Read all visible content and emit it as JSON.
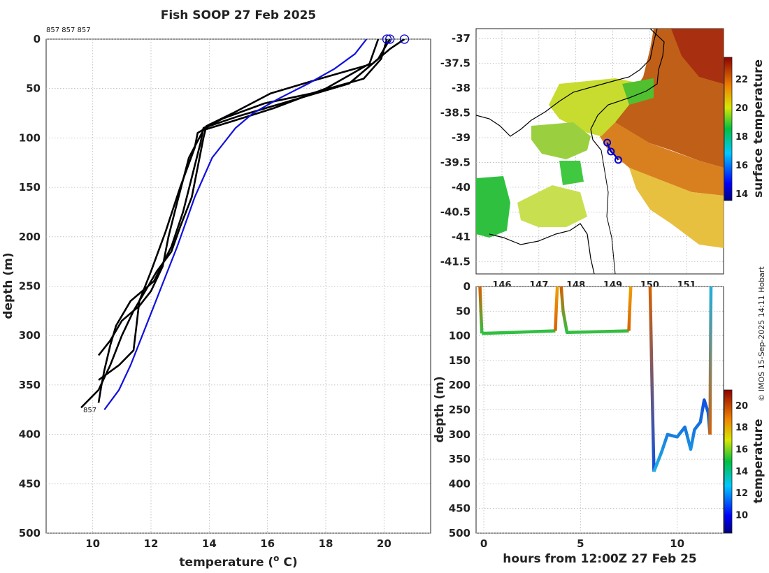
{
  "colors": {
    "profile": "#000000",
    "climatology": "#1010e0",
    "marker": "#0000cc",
    "land": "#ffffff",
    "coast": "#000000"
  },
  "footer": {
    "credit": "© IMOS 15-Sep-2025 14:11 Hobart"
  },
  "chart_data": [
    {
      "id": "profile",
      "type": "line",
      "title": "Fish SOOP 27 Feb 2025",
      "xlabel": "temperature (",
      "xlabel_sup": "o",
      "xlabel_end": " C)",
      "ylabel": "depth (m)",
      "xlim": [
        8.4,
        21.6
      ],
      "ylim": [
        500,
        0
      ],
      "xticks": [
        "10",
        "12",
        "14",
        "16",
        "18",
        "20"
      ],
      "yticks": [
        "0",
        "50",
        "100",
        "150",
        "200",
        "250",
        "300",
        "350",
        "400",
        "450",
        "500"
      ],
      "grid": true,
      "top_label": "857 857 857",
      "end_label": "857",
      "climatology": {
        "name": "climatology",
        "x": [
          19.4,
          19.0,
          18.3,
          17.4,
          16.4,
          15.5,
          14.9,
          14.5,
          14.1,
          13.8,
          13.5,
          13.2,
          12.9,
          12.5,
          12.1,
          11.7,
          11.3,
          10.9,
          10.4
        ],
        "y": [
          0,
          15,
          30,
          45,
          60,
          75,
          90,
          105,
          120,
          140,
          160,
          185,
          210,
          240,
          270,
          300,
          330,
          355,
          375
        ]
      },
      "series": [
        {
          "name": "drop-1",
          "x": [
            20.7,
            20.2,
            19.6,
            17.8,
            16.1,
            14.8,
            13.9,
            13.8,
            13.6,
            13.4,
            13.0,
            12.7,
            12.2,
            11.8,
            11.4,
            11.0,
            10.6,
            10.2,
            9.6
          ],
          "y": [
            0,
            10,
            25,
            40,
            55,
            75,
            88,
            100,
            130,
            160,
            190,
            215,
            235,
            255,
            275,
            300,
            330,
            355,
            373
          ]
        },
        {
          "name": "drop-2",
          "x": [
            20.1,
            19.9,
            19.3,
            17.5,
            15.9,
            14.5,
            13.8,
            13.7,
            13.4,
            13.1,
            12.7,
            12.1,
            11.3,
            10.8,
            10.6,
            10.4,
            10.3,
            10.2
          ],
          "y": [
            0,
            20,
            40,
            55,
            65,
            80,
            90,
            105,
            140,
            175,
            210,
            245,
            265,
            290,
            310,
            335,
            350,
            368
          ]
        },
        {
          "name": "drop-3",
          "x": [
            20.2,
            19.8,
            18.8,
            16.5,
            15.0,
            14.0,
            13.6,
            13.5,
            13.0,
            12.5,
            12.0,
            11.6,
            11.5,
            11.4,
            10.9,
            10.2
          ],
          "y": [
            0,
            20,
            45,
            65,
            78,
            88,
            95,
            110,
            150,
            195,
            235,
            265,
            290,
            315,
            330,
            345
          ]
        },
        {
          "name": "drop-4",
          "x": [
            19.8,
            19.5,
            18.0,
            16.2,
            14.8,
            13.8,
            13.3,
            12.9,
            12.6,
            12.4,
            12.0,
            11.6,
            11.0,
            10.6,
            10.2
          ],
          "y": [
            0,
            25,
            50,
            70,
            83,
            92,
            120,
            165,
            200,
            230,
            255,
            270,
            285,
            305,
            320
          ]
        }
      ]
    },
    {
      "id": "sst-map",
      "type": "heatmap",
      "xticks": [
        "146",
        "147",
        "148",
        "149",
        "150",
        "151"
      ],
      "xlim": [
        145.3,
        152.0
      ],
      "yticks": [
        "-37",
        "-37.5",
        "-38",
        "-38.5",
        "-39",
        "-39.5",
        "-40",
        "-40.5",
        "-41",
        "-41.5"
      ],
      "ylim": [
        -41.75,
        -36.8
      ],
      "colorbar_label": "surface temperature",
      "colorbar_ticks": [
        "14",
        "16",
        "18",
        "20",
        "22"
      ],
      "colorbar_range": [
        13.5,
        23.5
      ],
      "track": {
        "lon": [
          148.85,
          148.9,
          148.95,
          149.05,
          149.15
        ],
        "lat": [
          -39.1,
          -39.2,
          -39.28,
          -39.35,
          -39.45
        ]
      }
    },
    {
      "id": "section",
      "type": "scatter",
      "xlabel": "hours from 12:00Z 27 Feb 25",
      "ylabel": "depth (m)",
      "xticks": [
        "0",
        "5",
        "10"
      ],
      "xlim": [
        -0.4,
        12.4
      ],
      "yticks": [
        "0",
        "50",
        "100",
        "150",
        "200",
        "250",
        "300",
        "350",
        "400",
        "450",
        "500"
      ],
      "ylim": [
        500,
        0
      ],
      "colorbar_label": "temperature",
      "colorbar_ticks": [
        "10",
        "12",
        "14",
        "16",
        "18",
        "20"
      ],
      "colorbar_range": [
        8.3,
        21.4
      ]
    }
  ]
}
